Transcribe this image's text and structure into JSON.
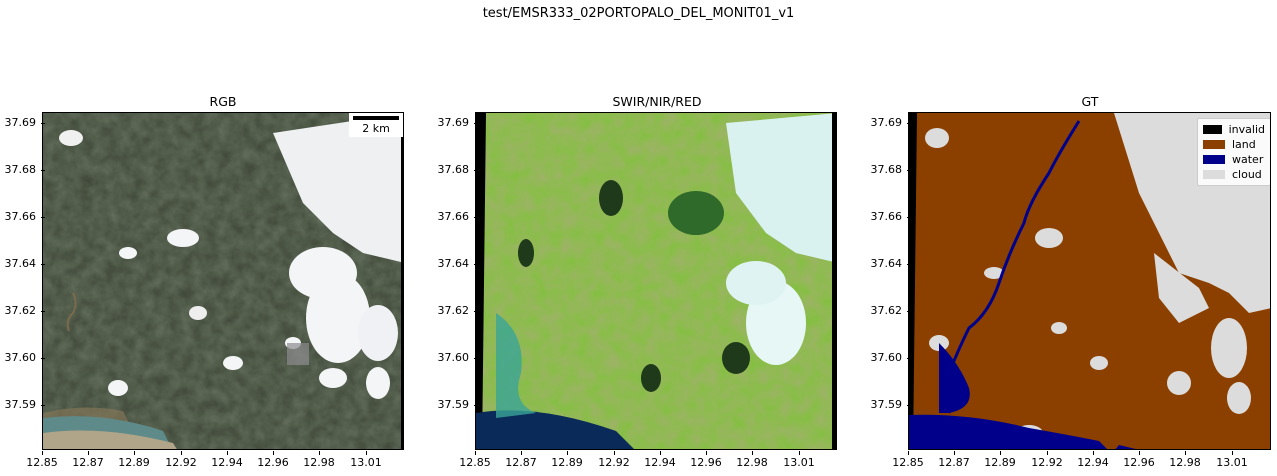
{
  "suptitle": "test/EMSR333_02PORTOPALO_DEL_MONIT01_v1",
  "panels": [
    {
      "title": "RGB"
    },
    {
      "title": "SWIR/NIR/RED"
    },
    {
      "title": "GT"
    }
  ],
  "yticks": [
    "37.69",
    "37.68",
    "37.66",
    "37.64",
    "37.62",
    "37.60",
    "37.59"
  ],
  "xticks": [
    "12.85",
    "12.87",
    "12.89",
    "12.92",
    "12.94",
    "12.96",
    "12.98",
    "13.01"
  ],
  "scalebar": {
    "label": "2 km"
  },
  "legend": [
    {
      "label": "invalid",
      "color": "#000000"
    },
    {
      "label": "land",
      "color": "#8b4000"
    },
    {
      "label": "water",
      "color": "#00008b"
    },
    {
      "label": "cloud",
      "color": "#dcdcdc"
    }
  ]
}
